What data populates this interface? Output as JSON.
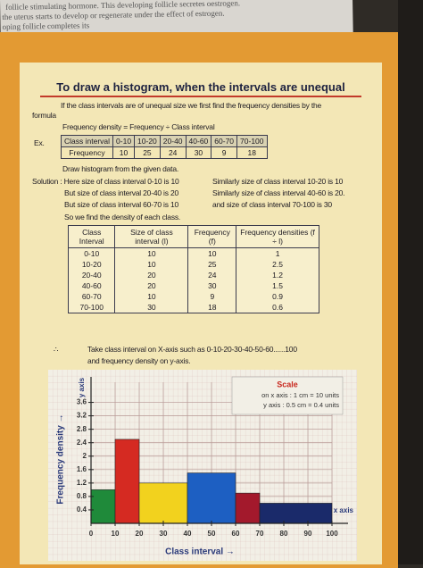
{
  "top_text": [
    "follicle stimulating hormone. This developing follicle secretes oestrogen.",
    "the uterus starts to develop or regenerate under the effect of estrogen.",
    "oping follicle completes its"
  ],
  "title": "To draw a histogram, when the intervals are unequal",
  "intro": [
    "If the class intervals are of unequal size we first find the frequency densities by the",
    "formula"
  ],
  "formula": "Frequency density = Frequency ÷ Class interval",
  "example_label": "Ex.",
  "example_table": [
    [
      "Class interval",
      "0-10",
      "10-20",
      "20-40",
      "40-60",
      "60-70",
      "70-100"
    ],
    [
      "Frequency",
      "10",
      "25",
      "24",
      "30",
      "9",
      "18"
    ]
  ],
  "instruction": "Draw histogram from the given data.",
  "solution": {
    "left": [
      "Solution : Here size of class interval 0-10 is 10",
      "But size of class interval 20-40 is 20",
      "But size of class interval 60-70 is 10"
    ],
    "right": [
      "Similarly size of class interval 10-20 is 10",
      "Similarly size of class interval 40-60 is 20.",
      "and size of class interval 70-100 is 30"
    ],
    "conclusion": "So we find the density of each class."
  },
  "main_table": {
    "header": [
      "Class Interval",
      "Size of class interval (l)",
      "Frequency (f)",
      "Frequency densities (f ÷ l)"
    ],
    "rows": [
      [
        "0-10",
        "10",
        "10",
        "1"
      ],
      [
        "10-20",
        "10",
        "25",
        "2.5"
      ],
      [
        "20-40",
        "20",
        "24",
        "1.2"
      ],
      [
        "40-60",
        "20",
        "30",
        "1.5"
      ],
      [
        "60-70",
        "10",
        "9",
        "0.9"
      ],
      [
        "70-100",
        "30",
        "18",
        "0.6"
      ]
    ]
  },
  "therefore": "∴",
  "axis_note": [
    "Take class interval on X-axis such as 0-10-20-30-40-50-60......100",
    "and frequency density on y-axis."
  ],
  "histogram": {
    "type": "histogram",
    "ylabel": "Frequency density →",
    "y_axis_label": "y axis",
    "xlabel": "Class interval →",
    "x_axis_label": "x axis",
    "scale": {
      "title": "Scale",
      "lines": [
        "on x axis : 1 cm = 10 units",
        "y axis : 0.5 cm = 0.4 units"
      ]
    },
    "bins": [
      0,
      10,
      20,
      40,
      60,
      70,
      100
    ],
    "values": [
      1,
      2.5,
      1.2,
      1.5,
      0.9,
      0.6
    ],
    "colors": [
      "#1f8a3a",
      "#d52a22",
      "#f2d21e",
      "#1d5fc2",
      "#a3192c",
      "#1a2a6a"
    ],
    "xlim": [
      0,
      100
    ],
    "ylim": [
      0,
      4.2
    ],
    "xticks": [
      0,
      10,
      20,
      30,
      40,
      50,
      60,
      70,
      80,
      90,
      100
    ],
    "yticks": [
      0.4,
      0.8,
      1.2,
      1.6,
      2,
      2.4,
      2.8,
      3.2,
      3.6
    ],
    "grid": true
  }
}
